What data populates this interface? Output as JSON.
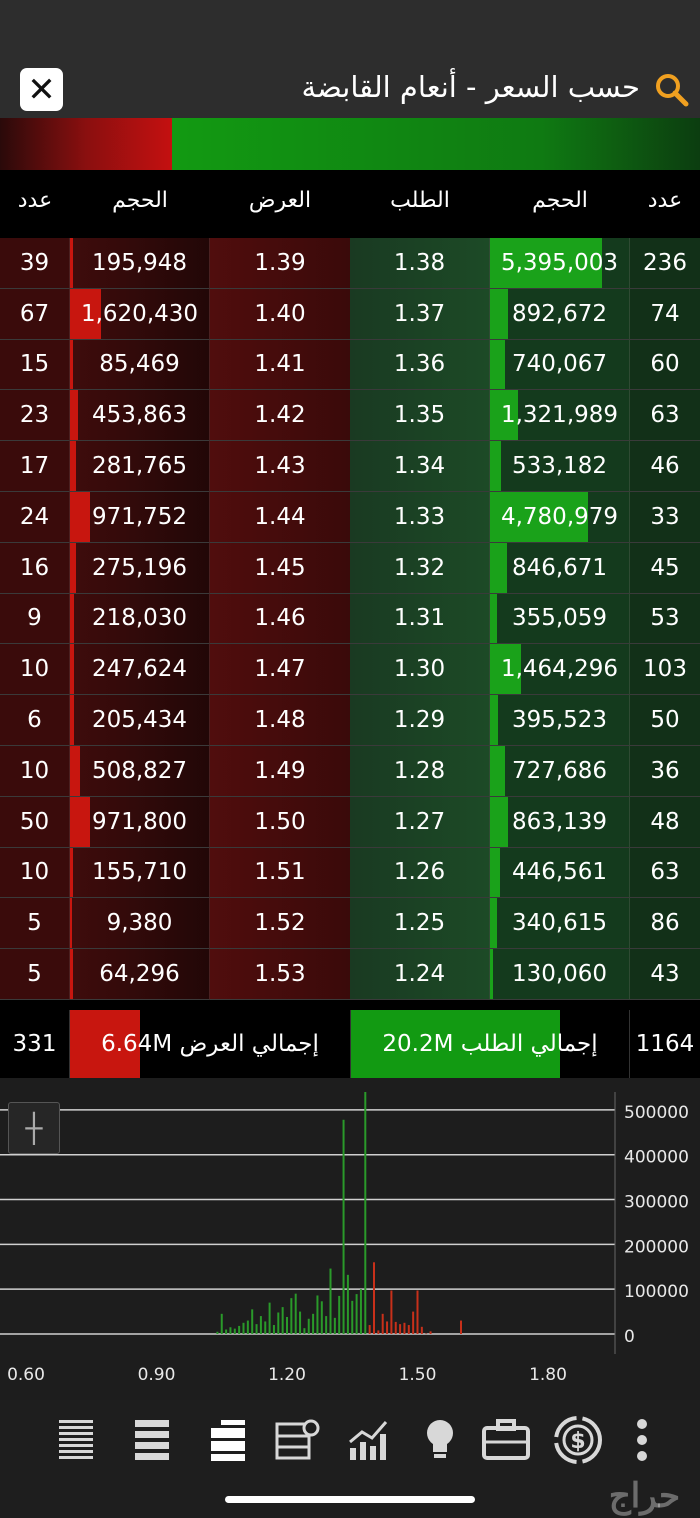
{
  "header": {
    "title": "حسب السعر -  أنعام القابضة",
    "close_icon": "close-icon",
    "search_icon": "search-icon"
  },
  "columns": {
    "ask_count": "عدد",
    "ask_volume": "الحجم",
    "ask_price": "العرض",
    "bid_price": "الطلب",
    "bid_volume": "الحجم",
    "bid_count": "عدد"
  },
  "rows": [
    {
      "acnt": "39",
      "avol": "195,948",
      "ask": "1.39",
      "bid": "1.38",
      "bvol": "5,395,003",
      "bcnt": "236",
      "afill": 0.02,
      "bfill": 0.8
    },
    {
      "acnt": "67",
      "avol": "1,620,430",
      "ask": "1.40",
      "bid": "1.37",
      "bvol": "892,672",
      "bcnt": "74",
      "afill": 0.22,
      "bfill": 0.13
    },
    {
      "acnt": "15",
      "avol": "85,469",
      "ask": "1.41",
      "bid": "1.36",
      "bvol": "740,067",
      "bcnt": "60",
      "afill": 0.01,
      "bfill": 0.11
    },
    {
      "acnt": "23",
      "avol": "453,863",
      "ask": "1.42",
      "bid": "1.35",
      "bvol": "1,321,989",
      "bcnt": "63",
      "afill": 0.06,
      "bfill": 0.2
    },
    {
      "acnt": "17",
      "avol": "281,765",
      "ask": "1.43",
      "bid": "1.34",
      "bvol": "533,182",
      "bcnt": "46",
      "afill": 0.04,
      "bfill": 0.08
    },
    {
      "acnt": "24",
      "avol": "971,752",
      "ask": "1.44",
      "bid": "1.33",
      "bvol": "4,780,979",
      "bcnt": "33",
      "afill": 0.14,
      "bfill": 0.7
    },
    {
      "acnt": "16",
      "avol": "275,196",
      "ask": "1.45",
      "bid": "1.32",
      "bvol": "846,671",
      "bcnt": "45",
      "afill": 0.04,
      "bfill": 0.12
    },
    {
      "acnt": "9",
      "avol": "218,030",
      "ask": "1.46",
      "bid": "1.31",
      "bvol": "355,059",
      "bcnt": "53",
      "afill": 0.03,
      "bfill": 0.05
    },
    {
      "acnt": "10",
      "avol": "247,624",
      "ask": "1.47",
      "bid": "1.30",
      "bvol": "1,464,296",
      "bcnt": "103",
      "afill": 0.03,
      "bfill": 0.22
    },
    {
      "acnt": "6",
      "avol": "205,434",
      "ask": "1.48",
      "bid": "1.29",
      "bvol": "395,523",
      "bcnt": "50",
      "afill": 0.03,
      "bfill": 0.06
    },
    {
      "acnt": "10",
      "avol": "508,827",
      "ask": "1.49",
      "bid": "1.28",
      "bvol": "727,686",
      "bcnt": "36",
      "afill": 0.07,
      "bfill": 0.11
    },
    {
      "acnt": "50",
      "avol": "971,800",
      "ask": "1.50",
      "bid": "1.27",
      "bvol": "863,139",
      "bcnt": "48",
      "afill": 0.14,
      "bfill": 0.13
    },
    {
      "acnt": "10",
      "avol": "155,710",
      "ask": "1.51",
      "bid": "1.26",
      "bvol": "446,561",
      "bcnt": "63",
      "afill": 0.02,
      "bfill": 0.07
    },
    {
      "acnt": "5",
      "avol": "9,380",
      "ask": "1.52",
      "bid": "1.25",
      "bvol": "340,615",
      "bcnt": "86",
      "afill": 0.0,
      "bfill": 0.05
    },
    {
      "acnt": "5",
      "avol": "64,296",
      "ask": "1.53",
      "bid": "1.24",
      "bvol": "130,060",
      "bcnt": "43",
      "afill": 0.01,
      "bfill": 0.02
    }
  ],
  "totals": {
    "ask_count": "331",
    "ask_total": "إجمالي العرض 6.64M",
    "bid_total": "إجمالي الطلب 20.2M",
    "bid_count": "1164",
    "ask_share": 0.25,
    "bid_share": 0.75
  },
  "chart_data": {
    "type": "bar",
    "x_ticks": [
      "0.60",
      "0.90",
      "1.20",
      "1.50",
      "1.80"
    ],
    "y_ticks": [
      "500000",
      "400000",
      "300000",
      "200000",
      "100000",
      "0"
    ],
    "xlim": [
      0.55,
      1.9
    ],
    "ylim": [
      0,
      540000
    ],
    "grid": true,
    "series": [
      {
        "color": "#2a9a2a",
        "x": [
          1.04,
          1.05,
          1.06,
          1.07,
          1.08,
          1.09,
          1.1,
          1.11,
          1.12,
          1.13,
          1.14,
          1.15,
          1.16,
          1.17,
          1.18,
          1.19,
          1.2,
          1.21,
          1.22,
          1.23,
          1.24,
          1.25,
          1.26,
          1.27,
          1.28,
          1.29,
          1.3,
          1.31,
          1.32,
          1.33,
          1.34,
          1.35,
          1.36,
          1.37,
          1.38
        ],
        "values": [
          5000,
          45000,
          10000,
          15000,
          12000,
          18000,
          25000,
          30000,
          55000,
          22000,
          40000,
          28000,
          70000,
          20000,
          48000,
          60000,
          38000,
          80000,
          90000,
          50000,
          13000,
          34000,
          45000,
          86000,
          73000,
          40000,
          146000,
          36000,
          85000,
          478000,
          132000,
          74000,
          89000,
          100000,
          540000
        ]
      },
      {
        "color": "#c8301a",
        "x": [
          1.39,
          1.4,
          1.41,
          1.42,
          1.43,
          1.44,
          1.45,
          1.46,
          1.47,
          1.48,
          1.49,
          1.5,
          1.51,
          1.52,
          1.53,
          1.6
        ],
        "values": [
          20000,
          160000,
          8000,
          45000,
          28000,
          97000,
          27000,
          22000,
          25000,
          20000,
          50000,
          97000,
          16000,
          1000,
          6000,
          30000
        ]
      }
    ]
  },
  "nav": [
    {
      "name": "list-dense-icon"
    },
    {
      "name": "list-icon"
    },
    {
      "name": "order-book-icon"
    },
    {
      "name": "settings-table-icon"
    },
    {
      "name": "chart-up-icon"
    },
    {
      "name": "lightbulb-icon"
    },
    {
      "name": "briefcase-icon"
    },
    {
      "name": "dollar-cycle-icon"
    },
    {
      "name": "more-icon"
    }
  ],
  "watermark": "حراج"
}
